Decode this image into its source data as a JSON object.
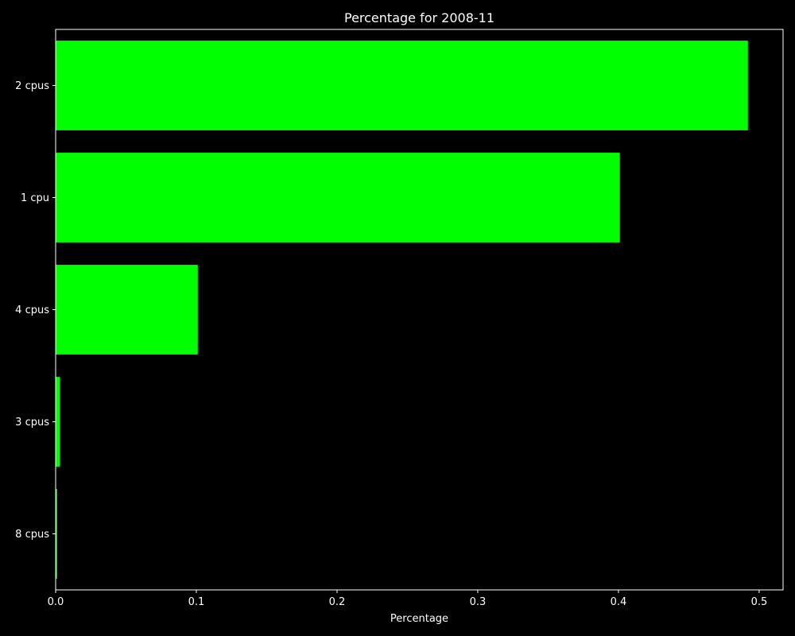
{
  "colors": {
    "background": "#000000",
    "bar": "#00ff00",
    "axis": "#ffffff",
    "text": "#ffffff"
  },
  "chart_data": {
    "type": "bar",
    "orientation": "horizontal",
    "title": "Percentage for 2008-11",
    "xlabel": "Percentage",
    "ylabel": "",
    "categories": [
      "2 cpus",
      "1 cpu",
      "4 cpus",
      "3 cpus",
      "8 cpus"
    ],
    "values": [
      0.492,
      0.401,
      0.101,
      0.003,
      0.001
    ],
    "xlim": [
      0,
      0.517
    ],
    "xticks": [
      0.0,
      0.1,
      0.2,
      0.3,
      0.4,
      0.5
    ],
    "xtick_labels": [
      "0.0",
      "0.1",
      "0.2",
      "0.3",
      "0.4",
      "0.5"
    ],
    "grid": false,
    "legend": "none"
  }
}
